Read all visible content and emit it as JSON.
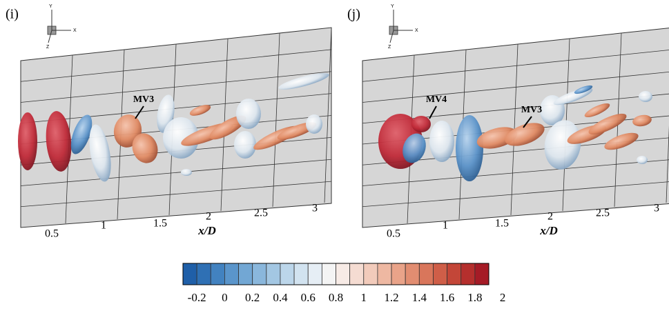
{
  "panels": [
    {
      "label": "(i)",
      "triad": {
        "y": "Y",
        "x": "X",
        "z": "Z"
      },
      "ticks": [
        0.5,
        1,
        1.5,
        2,
        2.5,
        3
      ],
      "axis_label": "x/D",
      "annotations": [
        "MV3"
      ]
    },
    {
      "label": "(j)",
      "triad": {
        "y": "Y",
        "x": "X",
        "z": "Z"
      },
      "ticks": [
        0.5,
        1,
        1.5,
        2,
        2.5,
        3
      ],
      "axis_label": "x/D",
      "annotations": [
        "MV4",
        "MV3"
      ]
    }
  ],
  "colorbar": {
    "labels": [
      -0.2,
      0,
      0.2,
      0.4,
      0.6,
      0.8,
      1,
      1.2,
      1.4,
      1.6,
      1.8,
      2
    ],
    "colors": [
      "#1f5fa8",
      "#2f70b4",
      "#4282c0",
      "#5a95cb",
      "#72a7d4",
      "#8ab7dc",
      "#a3c7e3",
      "#bcd6ea",
      "#d2e3f0",
      "#e6eef5",
      "#f4f4f4",
      "#f7ebe6",
      "#f5dcd2",
      "#f2cbbb",
      "#eeb8a2",
      "#e9a389",
      "#e28d71",
      "#d9765b",
      "#cf5e48",
      "#c34638",
      "#b52f2d",
      "#a51b26"
    ]
  }
}
